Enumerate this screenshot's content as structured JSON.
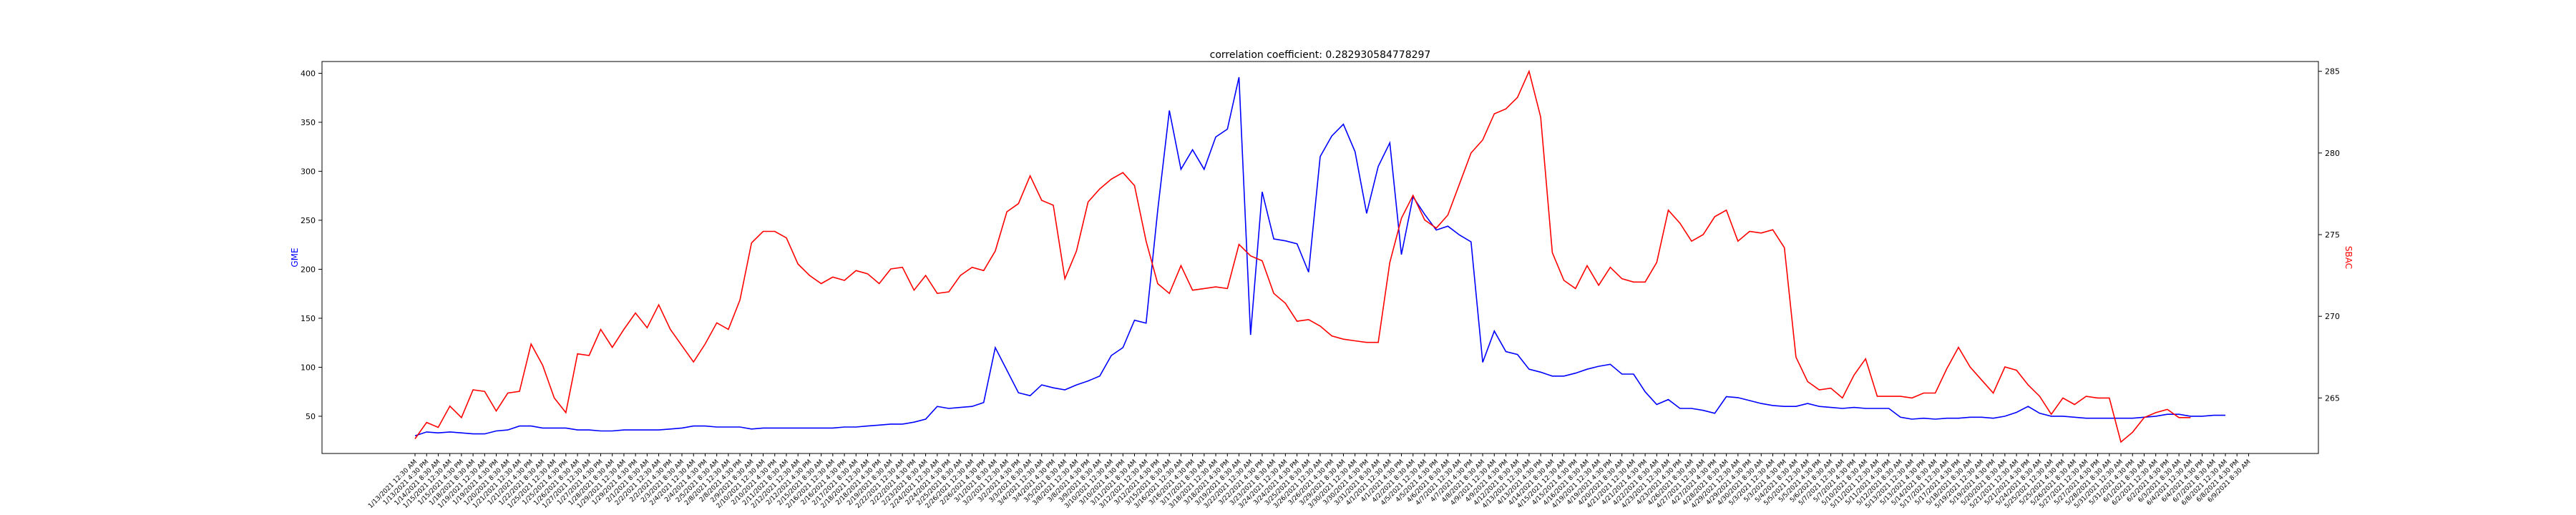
{
  "chart_data": {
    "type": "line",
    "title": "correlation coefficient: 0.282930584778297",
    "y_left_label": "GME",
    "y_right_label": "SBAC",
    "y_left_lim": [
      12,
      412
    ],
    "y_right_lim": [
      261.6,
      285.6
    ],
    "y_left_ticks": [
      50,
      100,
      150,
      200,
      250,
      300,
      350,
      400
    ],
    "y_right_ticks": [
      265,
      270,
      275,
      280,
      285
    ],
    "grid": false,
    "legend": "none",
    "series": [
      {
        "axis": "left",
        "color": "#0000ff",
        "values": [
          30,
          34,
          33,
          34,
          33,
          32,
          32,
          35,
          36,
          40,
          40,
          38,
          38,
          38,
          36,
          36,
          35,
          35,
          36,
          36,
          36,
          36,
          37,
          38,
          40,
          40,
          39,
          39,
          39,
          37,
          38,
          38,
          38,
          38,
          38,
          38,
          38,
          39,
          39,
          40,
          41,
          42,
          42,
          44,
          47,
          60,
          58,
          59,
          60,
          64,
          120,
          97,
          74,
          71,
          82,
          79,
          77,
          82,
          86,
          91,
          112,
          120,
          148,
          145,
          260,
          362,
          302,
          322,
          302,
          335,
          343,
          396,
          133,
          279,
          231,
          229,
          226,
          197,
          315,
          336,
          348,
          320,
          257,
          305,
          329,
          215,
          274,
          256,
          240,
          244,
          235,
          228,
          105,
          137,
          116,
          113,
          98,
          95,
          91,
          91,
          94,
          98,
          101,
          103,
          93,
          93,
          75,
          62,
          67,
          58,
          58,
          56,
          53,
          70,
          69,
          66,
          63,
          61,
          60,
          60,
          63,
          60,
          59,
          58,
          59,
          58,
          58,
          58,
          49,
          47,
          48,
          47,
          48,
          48,
          49,
          49,
          48,
          50,
          54,
          60,
          53,
          50,
          50,
          49,
          48,
          48,
          48,
          48,
          48,
          49,
          50,
          52,
          52,
          50,
          50,
          51,
          51
        ]
      },
      {
        "axis": "right",
        "color": "#ff0000",
        "values": [
          262.5,
          263.5,
          263.2,
          264.5,
          263.8,
          265.5,
          265.4,
          264.2,
          265.3,
          265.4,
          268.3,
          267,
          265,
          264.1,
          267.7,
          267.6,
          269.2,
          268.1,
          269.2,
          270.2,
          269.3,
          270.7,
          269.2,
          268.2,
          267.2,
          268.3,
          269.6,
          269.2,
          271,
          274.5,
          275.2,
          275.2,
          274.8,
          273.2,
          272.5,
          272,
          272.4,
          272.2,
          272.8,
          272.6,
          272,
          272.9,
          273,
          271.6,
          272.5,
          271.4,
          271.5,
          272.5,
          273,
          272.8,
          274,
          276.4,
          276.9,
          278.6,
          277.1,
          276.8,
          272.3,
          274,
          277,
          277.8,
          278.4,
          278.8,
          278,
          274.6,
          272,
          271.4,
          273.1,
          271.6,
          271.7,
          271.8,
          271.7,
          274.4,
          273.7,
          273.4,
          271.4,
          270.8,
          269.7,
          269.8,
          269.4,
          268.8,
          268.6,
          268.5,
          268.4,
          268.4,
          273.3,
          276,
          277.4,
          275.9,
          275.4,
          276.2,
          278.1,
          280,
          280.8,
          282.4,
          282.7,
          283.4,
          285,
          282.2,
          273.9,
          272.2,
          271.7,
          273.1,
          271.9,
          273,
          272.3,
          272.1,
          272.1,
          273.3,
          276.5,
          275.7,
          274.6,
          275,
          276.1,
          276.5,
          274.6,
          275.2,
          275.1,
          275.3,
          274.2,
          267.5,
          266,
          265.5,
          265.6,
          265,
          266.4,
          267.4,
          265.1,
          265.1,
          265.1,
          265,
          265.3,
          265.3,
          266.8,
          268.1,
          266.9,
          266.1,
          265.3,
          266.9,
          266.7,
          265.8,
          265.1,
          264,
          265,
          264.6,
          265.1,
          265,
          265,
          262.3,
          262.9,
          263.8,
          264.1,
          264.3,
          263.8,
          263.8
        ]
      }
    ],
    "x_labels": [
      "1/13/2021 12:30 AM",
      "1/13/2021 4:30 PM",
      "1/14/2021 8:30 AM",
      "1/15/2021 12:30 AM",
      "1/15/2021 4:30 PM",
      "1/18/2021 8:30 AM",
      "1/19/2021 12:30 AM",
      "1/19/2021 4:30 PM",
      "1/20/2021 8:30 AM",
      "1/21/2021 12:30 AM",
      "1/21/2021 4:30 PM",
      "1/22/2021 8:30 AM",
      "1/25/2021 12:30 AM",
      "1/25/2021 4:30 PM",
      "1/26/2021 8:30 AM",
      "1/27/2021 12:30 AM",
      "1/27/2021 4:30 PM",
      "1/28/2021 8:30 AM",
      "1/29/2021 12:30 AM",
      "1/29/2021 4:30 PM",
      "2/1/2021 8:30 AM",
      "2/2/2021 12:30 AM",
      "2/2/2021 4:30 PM",
      "2/3/2021 8:30 AM",
      "2/4/2021 12:30 AM",
      "2/4/2021 4:30 PM",
      "2/5/2021 8:30 AM",
      "2/8/2021 12:30 AM",
      "2/8/2021 4:30 PM",
      "2/9/2021 8:30 AM",
      "2/10/2021 12:30 AM",
      "2/10/2021 4:30 PM",
      "2/11/2021 8:30 AM",
      "2/12/2021 12:30 AM",
      "2/12/2021 4:30 PM",
      "2/15/2021 8:30 AM",
      "2/16/2021 12:30 AM",
      "2/16/2021 4:30 PM",
      "2/17/2021 8:30 AM",
      "2/18/2021 12:30 AM",
      "2/18/2021 4:30 PM",
      "2/19/2021 8:30 AM",
      "2/22/2021 12:30 AM",
      "2/22/2021 4:30 PM",
      "2/23/2021 8:30 AM",
      "2/24/2021 12:30 AM",
      "2/24/2021 4:30 PM",
      "2/25/2021 8:30 AM",
      "2/26/2021 12:30 AM",
      "2/26/2021 4:30 PM",
      "3/1/2021 8:30 AM",
      "3/2/2021 12:30 AM",
      "3/2/2021 4:30 PM",
      "3/3/2021 8:30 AM",
      "3/4/2021 12:30 AM",
      "3/4/2021 4:30 PM",
      "3/5/2021 8:30 AM",
      "3/8/2021 12:30 AM",
      "3/8/2021 4:30 PM",
      "3/9/2021 8:30 AM",
      "3/10/2021 12:30 AM",
      "3/10/2021 4:30 PM",
      "3/11/2021 8:30 AM",
      "3/12/2021 12:30 AM",
      "3/12/2021 4:30 PM",
      "3/15/2021 8:30 AM",
      "3/16/2021 12:30 AM",
      "3/16/2021 4:30 PM",
      "3/17/2021 8:30 AM",
      "3/18/2021 12:30 AM",
      "3/18/2021 4:30 PM",
      "3/19/2021 8:30 AM",
      "3/22/2021 12:30 AM",
      "3/22/2021 4:30 PM",
      "3/23/2021 8:30 AM",
      "3/24/2021 12:30 AM",
      "3/24/2021 4:30 PM",
      "3/25/2021 8:30 AM",
      "3/26/2021 12:30 AM",
      "3/26/2021 4:30 PM",
      "3/29/2021 8:30 AM",
      "3/30/2021 12:30 AM",
      "3/30/2021 4:30 PM",
      "3/31/2021 8:30 AM",
      "4/1/2021 12:30 AM",
      "4/1/2021 4:30 PM",
      "4/2/2021 8:30 AM",
      "4/5/2021 12:30 AM",
      "4/5/2021 4:30 PM",
      "4/6/2021 8:30 AM",
      "4/7/2021 12:30 AM",
      "4/7/2021 4:30 PM",
      "4/8/2021 8:30 AM",
      "4/9/2021 12:30 AM",
      "4/9/2021 4:30 PM",
      "4/12/2021 8:30 AM",
      "4/13/2021 12:30 AM",
      "4/13/2021 4:30 PM",
      "4/14/2021 8:30 AM",
      "4/15/2021 12:30 AM",
      "4/15/2021 4:30 PM",
      "4/16/2021 8:30 AM",
      "4/19/2021 12:30 AM",
      "4/19/2021 4:30 PM",
      "4/20/2021 8:30 AM",
      "4/21/2021 12:30 AM",
      "4/21/2021 4:30 PM",
      "4/22/2021 8:30 AM",
      "4/23/2021 12:30 AM",
      "4/23/2021 4:30 PM",
      "4/26/2021 8:30 AM",
      "4/27/2021 12:30 AM",
      "4/27/2021 4:30 PM",
      "4/28/2021 8:30 AM",
      "4/29/2021 12:30 AM",
      "4/29/2021 4:30 PM",
      "4/30/2021 8:30 AM",
      "5/3/2021 12:30 AM",
      "5/3/2021 4:30 PM",
      "5/4/2021 8:30 AM",
      "5/5/2021 12:30 AM",
      "5/5/2021 4:30 PM",
      "5/6/2021 8:30 AM",
      "5/7/2021 12:30 AM",
      "5/7/2021 4:30 PM",
      "5/10/2021 8:30 AM",
      "5/11/2021 12:30 AM",
      "5/11/2021 4:30 PM",
      "5/12/2021 8:30 AM",
      "5/13/2021 12:30 AM",
      "5/13/2021 4:30 PM",
      "5/14/2021 8:30 AM",
      "5/17/2021 12:30 AM",
      "5/17/2021 4:30 PM",
      "5/18/2021 8:30 AM",
      "5/19/2021 12:30 AM",
      "5/19/2021 4:30 PM",
      "5/20/2021 8:30 AM",
      "5/21/2021 12:30 AM",
      "5/21/2021 4:30 PM",
      "5/24/2021 8:30 AM",
      "5/25/2021 12:30 AM",
      "5/25/2021 4:30 PM",
      "5/26/2021 8:30 AM",
      "5/27/2021 12:30 AM",
      "5/27/2021 4:30 PM",
      "5/28/2021 8:30 AM",
      "5/31/2021 12:30 AM",
      "5/31/2021 4:30 PM",
      "6/1/2021 8:30 AM",
      "6/2/2021 12:30 AM",
      "6/2/2021 4:30 PM",
      "6/3/2021 8:30 AM",
      "6/4/2021 12:30 AM",
      "6/4/2021 4:30 PM",
      "6/7/2021 8:30 AM",
      "6/8/2021 12:30 AM",
      "6/8/2021 4:30 PM",
      "6/9/2021 8:30 AM"
    ]
  }
}
